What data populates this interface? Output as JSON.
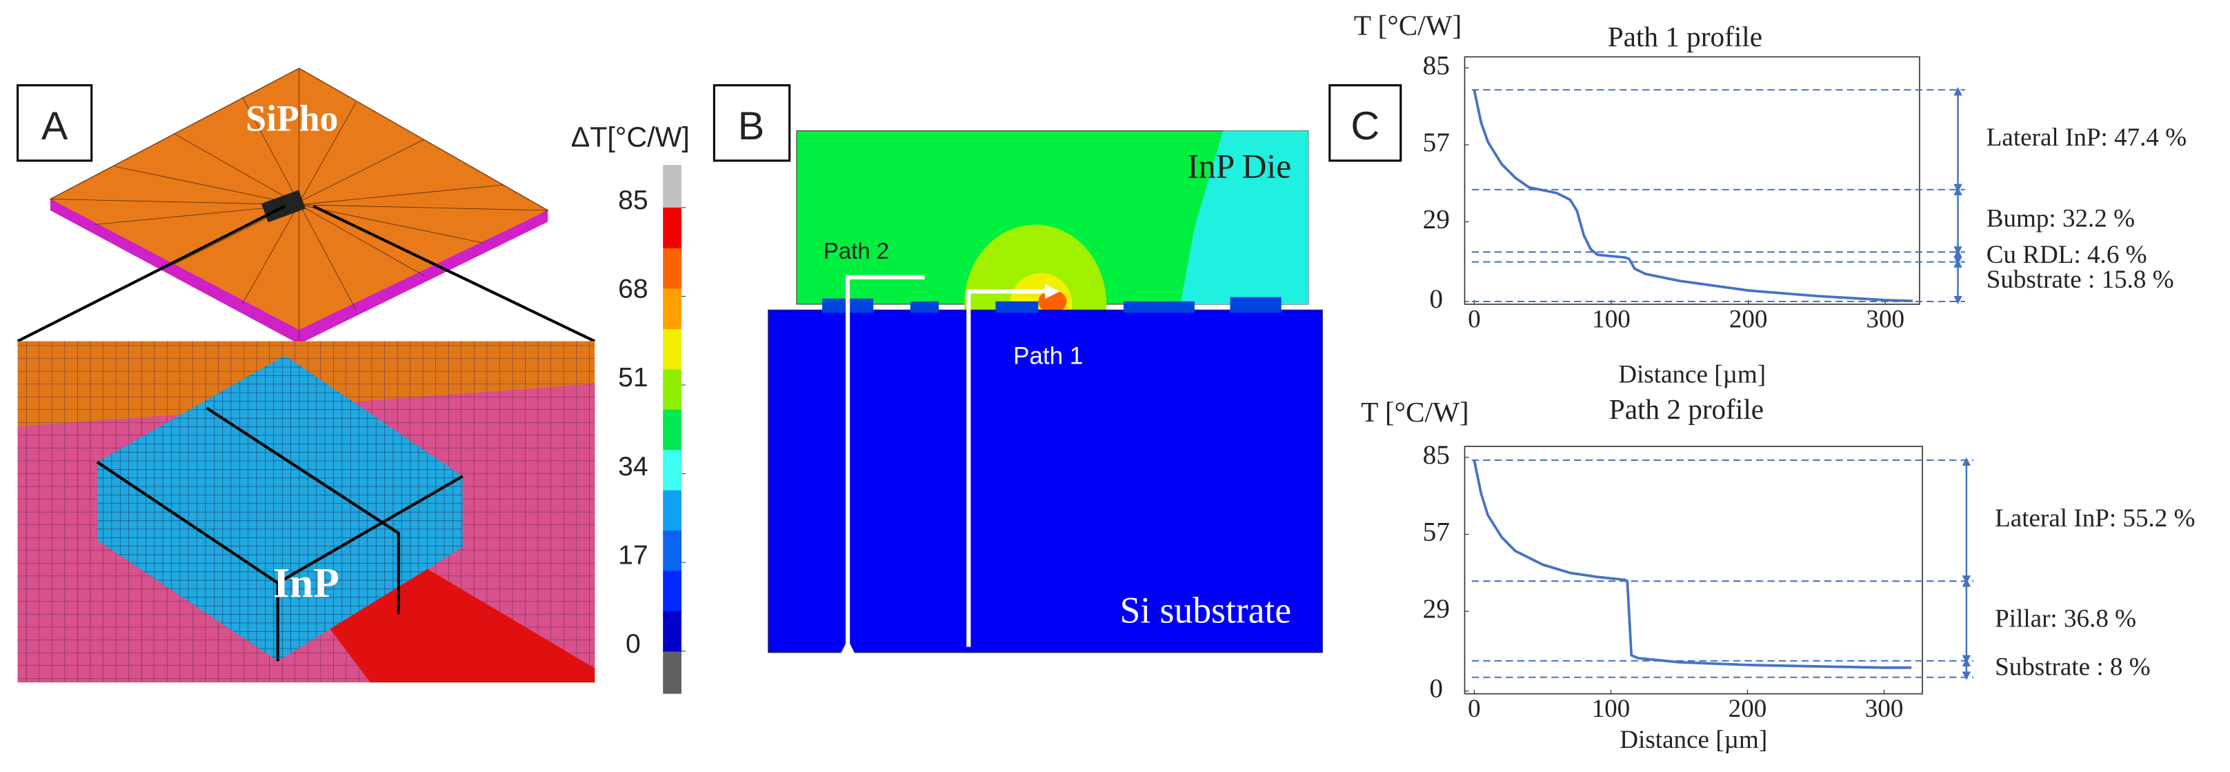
{
  "panel_a": {
    "label": "A",
    "top_label": "SiPho",
    "zoom_label": "InP"
  },
  "colorbar": {
    "title": "ΔT[°C/W]",
    "ticks": [
      0,
      17,
      34,
      51,
      68,
      85
    ],
    "lim": [
      0,
      85
    ],
    "colors": [
      "#0000c8",
      "#0028ff",
      "#0a64f0",
      "#14a0f0",
      "#40fff0",
      "#00e850",
      "#90ee00",
      "#f0f000",
      "#ffa000",
      "#ff6400",
      "#f00000"
    ]
  },
  "panel_b": {
    "label": "B",
    "die_label": "InP Die",
    "substrate_label": "Si substrate",
    "path2_label": "Path 2",
    "path1_label": "Path 1"
  },
  "panel_c": {
    "label": "C"
  },
  "chart_data": [
    {
      "type": "line",
      "title": "Path 1 profile",
      "y_label": "T [°C/W]",
      "x_label": "Distance [µm]",
      "x": [
        0,
        5,
        10,
        20,
        30,
        40,
        50,
        60,
        70,
        75,
        80,
        85,
        90,
        110,
        113,
        117,
        125,
        150,
        200,
        250,
        300,
        320
      ],
      "series": [
        {
          "color": "#4472c4",
          "values": [
            77,
            65,
            58,
            50,
            45,
            41.5,
            40.5,
            39.5,
            37,
            33,
            24,
            19,
            17,
            16,
            15.5,
            12,
            10,
            7.5,
            4,
            2,
            0.5,
            0.2
          ]
        }
      ],
      "xlim": [
        -7,
        325
      ],
      "ylim": [
        -1,
        89
      ],
      "xticks": [
        0,
        100,
        200,
        300
      ],
      "yticks": [
        0,
        29,
        57,
        85
      ],
      "levels": [
        77,
        40.7,
        18,
        14.4,
        0
      ],
      "annotations": [
        "Lateral InP: 47.4 %",
        "Bump: 32.2 %",
        "Cu RDL: 4.6 %",
        "Substrate : 15.8 %"
      ]
    },
    {
      "type": "line",
      "title": "Path 2 profile",
      "y_label": "T [°C/W]",
      "x_label": "Distance [µm]",
      "x": [
        0,
        5,
        10,
        20,
        30,
        50,
        70,
        90,
        110,
        112,
        115,
        120,
        150,
        200,
        250,
        300,
        320
      ],
      "series": [
        {
          "color": "#4472c4",
          "values": [
            84,
            72,
            64,
            56,
            51,
            46,
            43,
            41.5,
            40.5,
            40,
            13,
            12,
            10.5,
            9.5,
            9,
            8.5,
            8.5
          ]
        }
      ],
      "xlim": [
        -7,
        328
      ],
      "ylim": [
        -1,
        89
      ],
      "xticks": [
        0,
        100,
        200,
        300
      ],
      "yticks": [
        0,
        29,
        57,
        85
      ],
      "levels": [
        84,
        40,
        11,
        5
      ],
      "annotations": [
        "Lateral InP: 55.2 %",
        "Pillar: 36.8 %",
        "Substrate : 8 %"
      ]
    }
  ]
}
